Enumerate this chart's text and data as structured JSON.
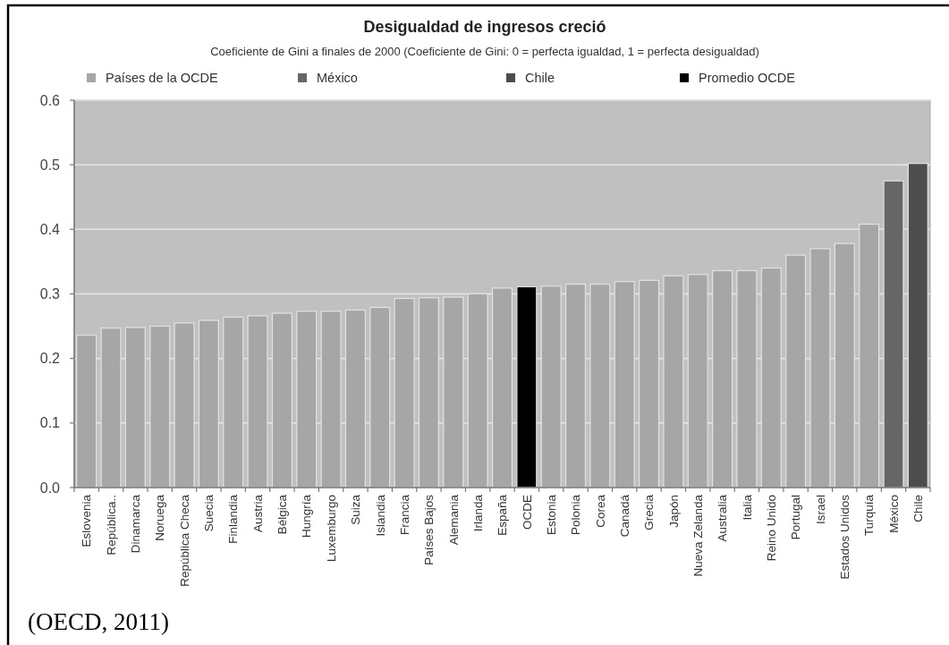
{
  "chart_data": {
    "type": "bar",
    "title": "Desigualdad de ingresos creció",
    "subtitle": "Coeficiente de Gini a finales de 2000 (Coeficiente de Gini: 0 = perfecta igualdad, 1 = perfecta desigualdad)",
    "categories": [
      "Eslovenia",
      "República..",
      "Dinamarca",
      "Noruega",
      "República Checa",
      "Suecia",
      "Finlandia",
      "Austria",
      "Bélgica",
      "Hungría",
      "Luxemburgo",
      "Suiza",
      "Islandia",
      "Francia",
      "Países Bajos",
      "Alemania",
      "Irlanda",
      "España",
      "OCDE",
      "Estonia",
      "Polonia",
      "Corea",
      "Canadá",
      "Grecia",
      "Japón",
      "Nueva Zelanda",
      "Australia",
      "Italia",
      "Reino Unido",
      "Portugal",
      "Israel",
      "Estados Unidos",
      "Turquía",
      "México",
      "Chile"
    ],
    "series": [
      {
        "name": "Países de la OCDE",
        "color": "#a6a6a6",
        "values": [
          0.236,
          0.247,
          0.248,
          0.25,
          0.255,
          0.259,
          0.264,
          0.266,
          0.27,
          0.273,
          0.273,
          0.275,
          0.279,
          0.293,
          0.294,
          0.295,
          0.3,
          0.309,
          null,
          0.312,
          0.315,
          0.315,
          0.319,
          0.321,
          0.328,
          0.33,
          0.336,
          0.336,
          0.34,
          0.36,
          0.37,
          0.378,
          0.408,
          null,
          null
        ]
      },
      {
        "name": "México",
        "color": "#666666",
        "values": [
          null,
          null,
          null,
          null,
          null,
          null,
          null,
          null,
          null,
          null,
          null,
          null,
          null,
          null,
          null,
          null,
          null,
          null,
          null,
          null,
          null,
          null,
          null,
          null,
          null,
          null,
          null,
          null,
          null,
          null,
          null,
          null,
          null,
          0.475,
          null
        ]
      },
      {
        "name": "Chile",
        "color": "#4d4d4d",
        "values": [
          null,
          null,
          null,
          null,
          null,
          null,
          null,
          null,
          null,
          null,
          null,
          null,
          null,
          null,
          null,
          null,
          null,
          null,
          null,
          null,
          null,
          null,
          null,
          null,
          null,
          null,
          null,
          null,
          null,
          null,
          null,
          null,
          null,
          null,
          0.502
        ]
      },
      {
        "name": "Promedio OCDE",
        "color": "#000000",
        "values": [
          null,
          null,
          null,
          null,
          null,
          null,
          null,
          null,
          null,
          null,
          null,
          null,
          null,
          null,
          null,
          null,
          null,
          null,
          0.311,
          null,
          null,
          null,
          null,
          null,
          null,
          null,
          null,
          null,
          null,
          null,
          null,
          null,
          null,
          null,
          null
        ]
      }
    ],
    "stacked": true,
    "ylim": [
      0,
      0.6
    ],
    "yticks": [
      {
        "value": 0,
        "label": "0.0"
      },
      0.1,
      0.2,
      0.3,
      0.4,
      0.5,
      0.6
    ],
    "grid": "y",
    "legend": "top",
    "annotations": [
      "(OECD, 2011)"
    ]
  }
}
